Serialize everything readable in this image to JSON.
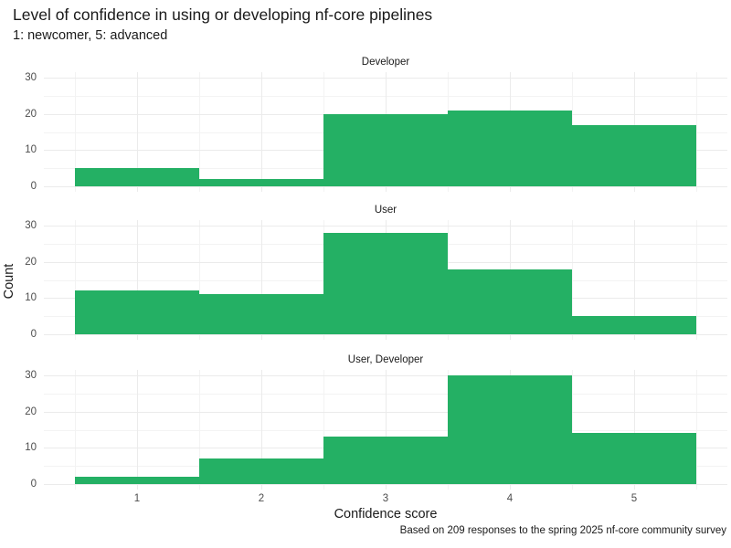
{
  "title": "Level of confidence in using or developing nf-core pipelines",
  "subtitle": "1: newcomer, 5: advanced",
  "xlabel": "Confidence score",
  "ylabel": "Count",
  "caption": "Based on 209 responses to the spring 2025 nf-core community survey",
  "colors": {
    "bar": "#24B064",
    "grid_major": "#EBEBEB",
    "grid_minor": "#F3F3F3",
    "text": "#1A1A1A",
    "tick_text": "#4D4D4D",
    "background": "#FFFFFF"
  },
  "chart_data": {
    "type": "bar",
    "subtype": "faceted-histogram",
    "title": "Level of confidence in using or developing nf-core pipelines",
    "subtitle": "1: newcomer, 5: advanced",
    "xlabel": "Confidence score",
    "ylabel": "Count",
    "caption": "Based on 209 responses to the spring 2025 nf-core community survey",
    "categories": [
      1,
      2,
      3,
      4,
      5
    ],
    "bin_width": 1,
    "x_ticks": [
      "1",
      "2",
      "3",
      "4",
      "5"
    ],
    "y_ticks": [
      "0",
      "10",
      "20",
      "30"
    ],
    "y_minor_ticks": [
      5,
      15,
      25
    ],
    "xlim": [
      0.25,
      5.75
    ],
    "ylim": [
      0,
      30
    ],
    "grid": true,
    "legend": false,
    "facets_layout": "rows",
    "series": [
      {
        "name": "Developer",
        "values": [
          5,
          2,
          20,
          21,
          17
        ]
      },
      {
        "name": "User",
        "values": [
          12,
          11,
          28,
          18,
          5
        ]
      },
      {
        "name": "User, Developer",
        "values": [
          2,
          7,
          13,
          30,
          14
        ]
      }
    ]
  }
}
